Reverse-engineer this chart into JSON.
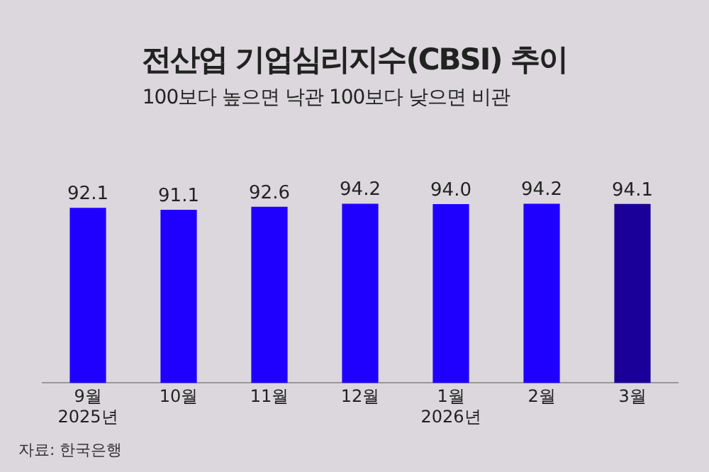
{
  "chart_data": {
    "type": "bar",
    "title": "전산업 기업심리지수(CBSI) 추이",
    "subtitle": "100보다 높으면 낙관 100보다 낮으면 비관",
    "categories": [
      "9월\n2025년",
      "10월",
      "11월",
      "12월",
      "1월\n2026년",
      "2월",
      "3월"
    ],
    "values": [
      92.1,
      91.1,
      92.6,
      94.2,
      94.0,
      94.2,
      94.1
    ],
    "colors": [
      "#1f00ff",
      "#1f00ff",
      "#1f00ff",
      "#1f00ff",
      "#1f00ff",
      "#1f00ff",
      "#1a0099"
    ],
    "value_labels": [
      "92.1",
      "91.1",
      "92.6",
      "94.2",
      "94.0",
      "94.2",
      "94.1"
    ],
    "tick_labels": "x",
    "grid": false,
    "legend": false,
    "annotations": [
      "자료: 한국은행"
    ]
  }
}
